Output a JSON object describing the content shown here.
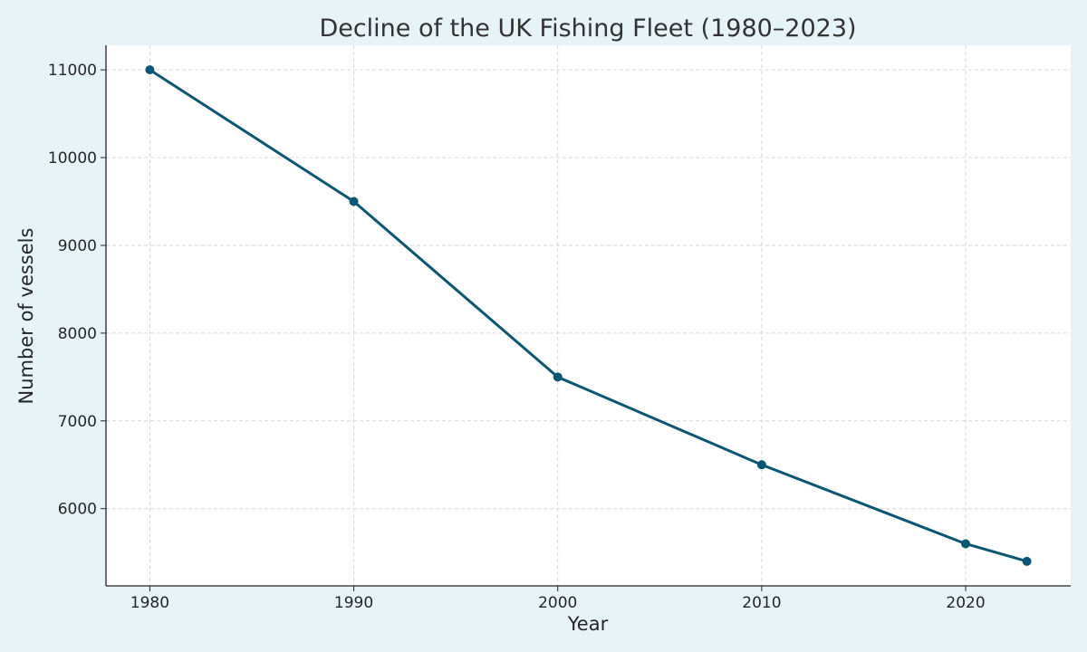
{
  "chart_data": {
    "type": "line",
    "title": "Decline of the UK Fishing Fleet (1980–2023)",
    "xlabel": "Year",
    "ylabel": "Number of vessels",
    "x": [
      1980,
      1990,
      2000,
      2010,
      2020,
      2023
    ],
    "series": [
      {
        "name": "Number of vessels",
        "values": [
          11000,
          9500,
          7500,
          6500,
          5600,
          5400
        ],
        "color": "#0b5673"
      }
    ],
    "xlim": [
      1977.85,
      2025.15
    ],
    "ylim": [
      5120,
      11280
    ],
    "xticks": [
      1980,
      1990,
      2000,
      2010,
      2020
    ],
    "yticks": [
      6000,
      7000,
      8000,
      9000,
      10000,
      11000
    ],
    "grid": true,
    "background": "#e6f4fa"
  }
}
